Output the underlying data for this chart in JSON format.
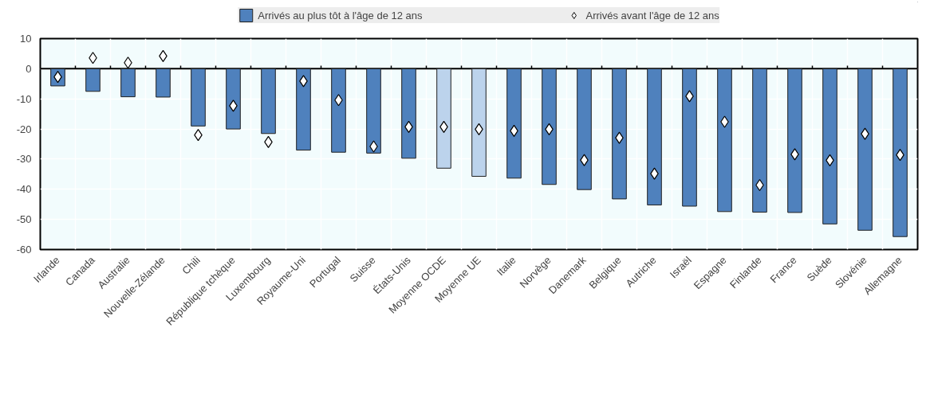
{
  "chart_data": {
    "type": "bar",
    "categories": [
      "Irlande",
      "Canada",
      "Australie",
      "Nouvelle-Zélande",
      "Chili",
      "République tchèque",
      "Luxembourg",
      "Royaume-Uni",
      "Portugal",
      "Suisse",
      "États-Unis",
      "Moyenne OCDE",
      "Moyenne UE",
      "Italie",
      "Norvège",
      "Danemark",
      "Belgique",
      "Autriche",
      "Israël",
      "Espagne",
      "Finlande",
      "France",
      "Suède",
      "Slovénie",
      "Allemagne"
    ],
    "series": [
      {
        "name": "Arrivés au plus tôt à l'âge de 12 ans",
        "color": "#4f81bd",
        "colors": [
          "#4f81bd",
          "#4f81bd",
          "#4f81bd",
          "#4f81bd",
          "#4f81bd",
          "#4f81bd",
          "#4f81bd",
          "#4f81bd",
          "#4f81bd",
          "#4f81bd",
          "#4f81bd",
          "#bcd3ec",
          "#bcd3ec",
          "#4f81bd",
          "#4f81bd",
          "#4f81bd",
          "#4f81bd",
          "#4f81bd",
          "#4f81bd",
          "#4f81bd",
          "#4f81bd",
          "#4f81bd",
          "#4f81bd",
          "#4f81bd",
          "#4f81bd"
        ],
        "values": [
          -5.7,
          -7.5,
          -9.3,
          -9.4,
          -19,
          -20,
          -21.5,
          -27,
          -27.7,
          -28,
          -29.7,
          -33,
          -35.7,
          -36.3,
          -38.4,
          -40.1,
          -43.2,
          -45.2,
          -45.6,
          -47.4,
          -47.6,
          -47.7,
          -51.5,
          -53.6,
          -55.7
        ]
      },
      {
        "name": "Arrivés avant l'âge de 12 ans",
        "type": "scatter",
        "marker": "diamond",
        "color": "#ffffff",
        "values": [
          -2.7,
          3.6,
          2.0,
          4.2,
          -22,
          -12.3,
          -24.3,
          -4.1,
          -10.4,
          -25.8,
          -19.3,
          -19.3,
          -20.1,
          -20.6,
          -20.1,
          -30.3,
          -22.9,
          -34.8,
          -9.1,
          -17.6,
          -38.6,
          -28.4,
          -30.4,
          -21.6,
          -28.6
        ]
      }
    ],
    "ylim": [
      -60,
      10
    ],
    "yticks": [
      -60,
      -50,
      -40,
      -30,
      -20,
      -10,
      0,
      10
    ],
    "grid": true,
    "legend": "top"
  }
}
